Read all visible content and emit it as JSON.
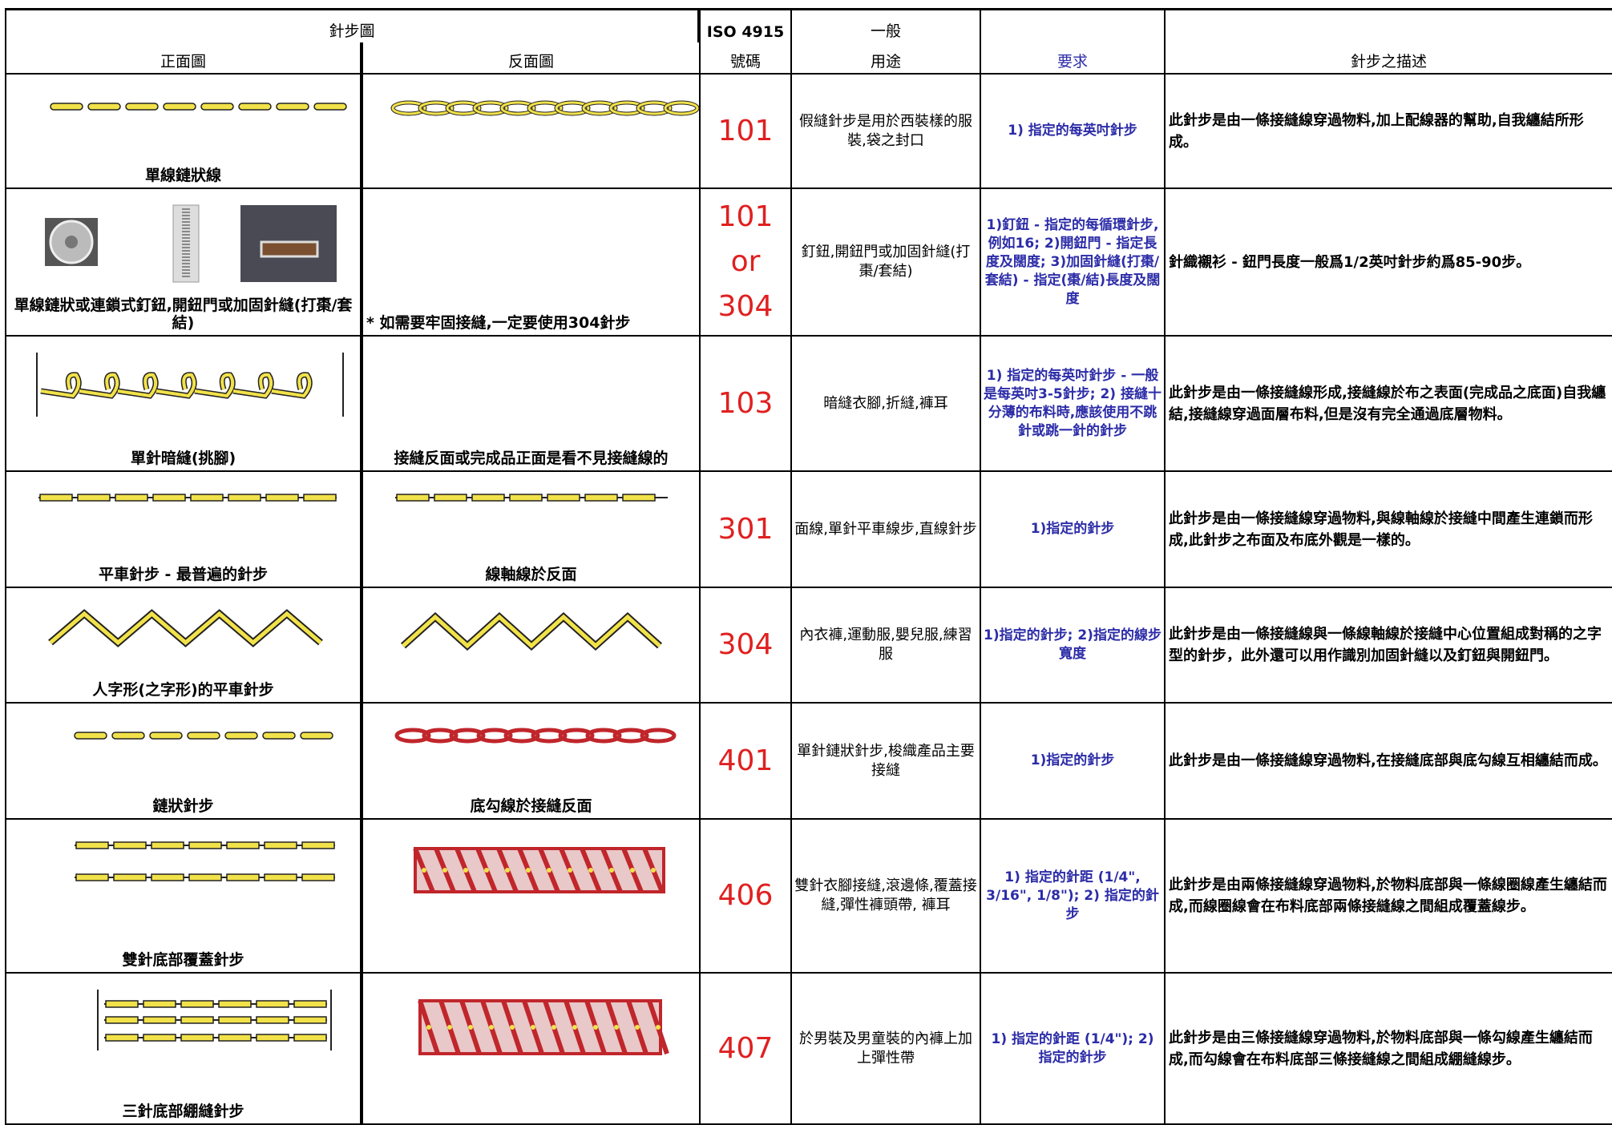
{
  "header": {
    "stitch_diagram": "針步圖",
    "front": "正面圖",
    "back": "反面圖",
    "iso": "ISO 4915",
    "number": "號碼",
    "general": "一般",
    "usage": "用途",
    "requirement": "要求",
    "description": "針步之描述"
  },
  "rows": [
    {
      "front_caption": "單線鏈狀線",
      "back_caption": "",
      "code": "101",
      "usage": "假縫針步是用於西裝樣的服裝,袋之封口",
      "requirement": "1) 指定的每英吋針步",
      "description": "此針步是由一條接縫線穿過物料,加上配線器的幫助,自我纏結所形成。"
    },
    {
      "front_caption": "單線鏈狀或連鎖式釘鈕,開鈕門或加固針縫(打棗/套結)",
      "back_caption": "* 如需要牢固接縫,一定要使用304針步",
      "code": "101\nor\n304",
      "usage": "釘鈕,開鈕門或加固針縫(打棗/套結)",
      "requirement": "1)釘鈕 - 指定的每循環針步,例如16; 2)開鈕門 - 指定長度及闊度; 3)加固針縫(打棗/套結) - 指定(棗/結)長度及闊度",
      "description": "針織襯衫 - 鈕門長度一般爲1/2英吋針步約爲85-90步。"
    },
    {
      "front_caption": "單針暗縫(挑腳)",
      "back_caption": "接縫反面或完成品正面是看不見接縫線的",
      "code": "103",
      "usage": "暗縫衣腳,折縫,褲耳",
      "requirement": "1) 指定的每英吋針步 - 一般是每英吋3-5針步; 2) 接縫十分薄的布料時,應該使用不跳針或跳一針的針步",
      "description": "此針步是由一條接縫線形成,接縫線於布之表面(完成品之底面)自我纏結,接縫線穿過面層布料,但是沒有完全通過底層物料。"
    },
    {
      "front_caption": "平車針步 - 最普遍的針步",
      "back_caption": "線軸線於反面",
      "code": "301",
      "usage": "面線,單針平車線步,直線針步",
      "requirement": "1)指定的針步",
      "description": "此針步是由一條接縫線穿過物料,與線軸線於接縫中間產生連鎖而形成,此針步之布面及布底外觀是一樣的。"
    },
    {
      "front_caption": "人字形(之字形)的平車針步",
      "back_caption": "",
      "code": "304",
      "usage": "內衣褲,運動服,嬰兒服,練習服",
      "requirement": "1)指定的針步; 2)指定的線步寬度",
      "description": "此針步是由一條接縫線與一條線軸線於接縫中心位置組成對稱的之字型的針步，此外還可以用作識別加固針縫以及釘鈕與開鈕門。"
    },
    {
      "front_caption": "鏈狀針步",
      "back_caption": "底勾線於接縫反面",
      "code": "401",
      "usage": "單針鏈狀針步,梭織產品主要接縫",
      "requirement": "1)指定的針步",
      "description": "此針步是由一條接縫線穿過物料,在接縫底部與底勾線互相纏結而成。"
    },
    {
      "front_caption": "雙針底部覆蓋針步",
      "back_caption": "",
      "code": "406",
      "usage": "雙針衣腳接縫,滾邊條,覆蓋接縫,彈性褲頭帶, 褲耳",
      "requirement": "1) 指定的針距 (1/4\", 3/16\", 1/8\"); 2) 指定的針步",
      "description": "此針步是由兩條接縫線穿過物料,於物料底部與一條線圈線產生纏結而成,而線圈線會在布料底部兩條接縫線之間組成覆蓋線步。"
    },
    {
      "front_caption": "三針底部綳縫針步",
      "back_caption": "",
      "code": "407",
      "usage": "於男裝及男童裝的內褲上加上彈性帶",
      "requirement": "1) 指定的針距 (1/4\"); 2) 指定的針步",
      "description": "此針步是由三條接縫線穿過物料,於物料底部與一條勾線產生纏結而成,而勾線會在布料底部三條接縫線之間組成綳縫線步。"
    }
  ]
}
